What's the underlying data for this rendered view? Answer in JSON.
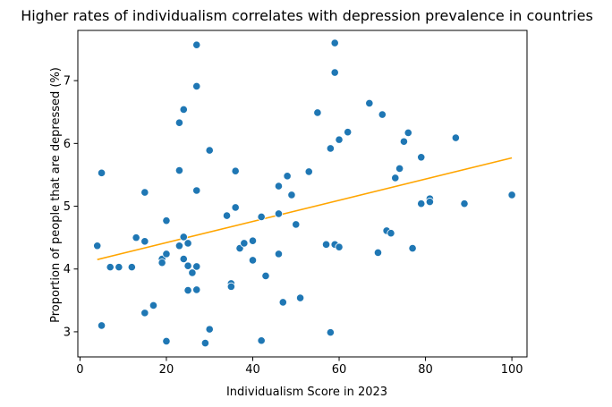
{
  "chart_data": {
    "type": "scatter",
    "title": "Higher rates of individualism correlates with depression prevalence in countries",
    "xlabel": "Individualism Score in 2023",
    "ylabel": "Proportion of people that are depressed (%)",
    "xlim": [
      -0.5,
      103.5
    ],
    "ylim": [
      2.6,
      7.8
    ],
    "xticks": [
      0,
      20,
      40,
      60,
      80,
      100
    ],
    "yticks": [
      3,
      4,
      5,
      6,
      7
    ],
    "grid": false,
    "point_color": "#1f77b4",
    "line_color": "#ffa500",
    "trendline": {
      "x": [
        4,
        100
      ],
      "y": [
        4.15,
        5.77
      ]
    },
    "points": [
      {
        "x": 4,
        "y": 4.37
      },
      {
        "x": 5,
        "y": 5.53
      },
      {
        "x": 5,
        "y": 3.1
      },
      {
        "x": 7,
        "y": 4.03
      },
      {
        "x": 9,
        "y": 4.03
      },
      {
        "x": 12,
        "y": 4.03
      },
      {
        "x": 13,
        "y": 4.5
      },
      {
        "x": 15,
        "y": 5.22
      },
      {
        "x": 15,
        "y": 4.44
      },
      {
        "x": 15,
        "y": 3.3
      },
      {
        "x": 17,
        "y": 3.42
      },
      {
        "x": 19,
        "y": 4.16
      },
      {
        "x": 19,
        "y": 4.1
      },
      {
        "x": 20,
        "y": 4.77
      },
      {
        "x": 20,
        "y": 4.24
      },
      {
        "x": 20,
        "y": 2.85
      },
      {
        "x": 23,
        "y": 6.33
      },
      {
        "x": 23,
        "y": 5.57
      },
      {
        "x": 23,
        "y": 4.37
      },
      {
        "x": 24,
        "y": 6.54
      },
      {
        "x": 24,
        "y": 4.51
      },
      {
        "x": 24,
        "y": 4.16
      },
      {
        "x": 25,
        "y": 4.41
      },
      {
        "x": 25,
        "y": 4.05
      },
      {
        "x": 25,
        "y": 3.66
      },
      {
        "x": 26,
        "y": 3.94
      },
      {
        "x": 27,
        "y": 7.57
      },
      {
        "x": 27,
        "y": 6.91
      },
      {
        "x": 27,
        "y": 5.25
      },
      {
        "x": 27,
        "y": 4.04
      },
      {
        "x": 27,
        "y": 3.67
      },
      {
        "x": 29,
        "y": 2.82
      },
      {
        "x": 30,
        "y": 5.89
      },
      {
        "x": 30,
        "y": 3.04
      },
      {
        "x": 34,
        "y": 4.85
      },
      {
        "x": 35,
        "y": 3.77
      },
      {
        "x": 35,
        "y": 3.72
      },
      {
        "x": 36,
        "y": 5.56
      },
      {
        "x": 36,
        "y": 4.98
      },
      {
        "x": 37,
        "y": 4.33
      },
      {
        "x": 38,
        "y": 4.41
      },
      {
        "x": 40,
        "y": 4.45
      },
      {
        "x": 40,
        "y": 4.14
      },
      {
        "x": 42,
        "y": 4.83
      },
      {
        "x": 42,
        "y": 2.86
      },
      {
        "x": 43,
        "y": 3.89
      },
      {
        "x": 46,
        "y": 5.32
      },
      {
        "x": 46,
        "y": 4.88
      },
      {
        "x": 46,
        "y": 4.24
      },
      {
        "x": 47,
        "y": 3.47
      },
      {
        "x": 48,
        "y": 5.48
      },
      {
        "x": 49,
        "y": 5.18
      },
      {
        "x": 50,
        "y": 4.71
      },
      {
        "x": 51,
        "y": 3.54
      },
      {
        "x": 53,
        "y": 5.55
      },
      {
        "x": 55,
        "y": 6.49
      },
      {
        "x": 57,
        "y": 4.39
      },
      {
        "x": 58,
        "y": 5.92
      },
      {
        "x": 58,
        "y": 2.99
      },
      {
        "x": 59,
        "y": 7.6
      },
      {
        "x": 59,
        "y": 7.13
      },
      {
        "x": 59,
        "y": 4.39
      },
      {
        "x": 60,
        "y": 6.06
      },
      {
        "x": 60,
        "y": 4.35
      },
      {
        "x": 62,
        "y": 6.18
      },
      {
        "x": 67,
        "y": 6.64
      },
      {
        "x": 69,
        "y": 4.26
      },
      {
        "x": 70,
        "y": 6.46
      },
      {
        "x": 71,
        "y": 4.61
      },
      {
        "x": 72,
        "y": 4.57
      },
      {
        "x": 73,
        "y": 5.45
      },
      {
        "x": 74,
        "y": 5.6
      },
      {
        "x": 75,
        "y": 6.03
      },
      {
        "x": 76,
        "y": 6.17
      },
      {
        "x": 77,
        "y": 4.33
      },
      {
        "x": 79,
        "y": 5.78
      },
      {
        "x": 79,
        "y": 5.04
      },
      {
        "x": 81,
        "y": 5.12
      },
      {
        "x": 81,
        "y": 5.07
      },
      {
        "x": 87,
        "y": 6.09
      },
      {
        "x": 89,
        "y": 5.04
      },
      {
        "x": 100,
        "y": 5.18
      }
    ]
  }
}
